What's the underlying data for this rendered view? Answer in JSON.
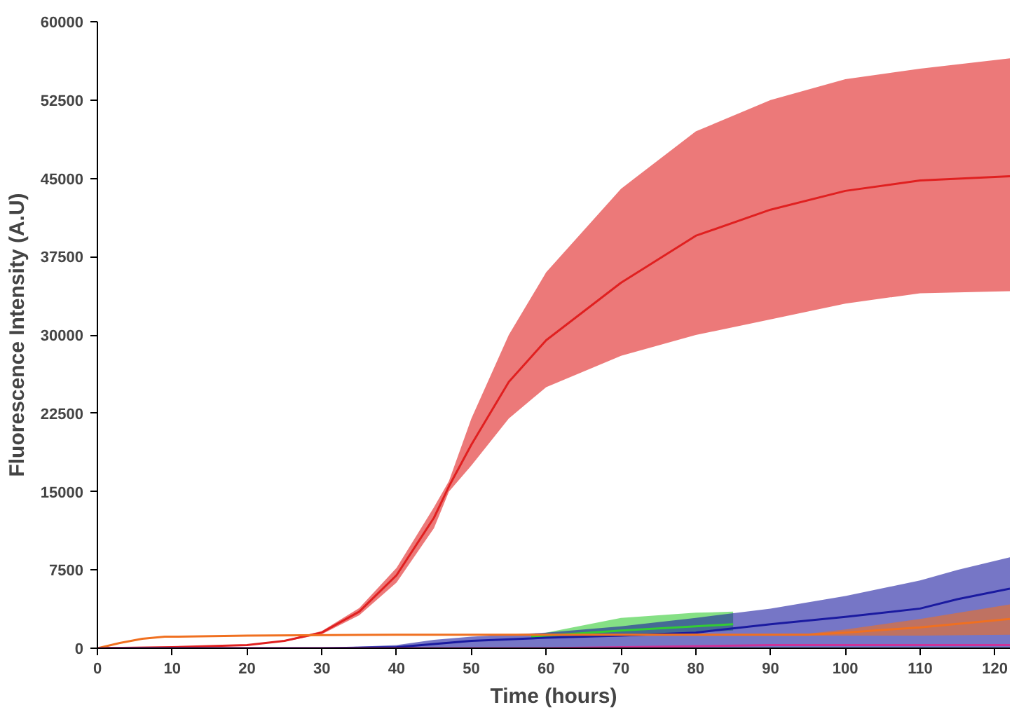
{
  "chart_data": {
    "type": "line",
    "xlabel": "Time (hours)",
    "ylabel": "Fluorescence Intensity (A.U)",
    "xlim": [
      0,
      122
    ],
    "ylim": [
      0,
      60000
    ],
    "xticks": [
      0,
      10,
      20,
      30,
      40,
      50,
      60,
      70,
      80,
      90,
      100,
      110,
      120
    ],
    "yticks": [
      0,
      7500,
      15000,
      22500,
      30000,
      37500,
      45000,
      52500,
      60000
    ],
    "grid": false,
    "marker": "none",
    "line_style": "solid",
    "series": [
      {
        "color": "#e02020",
        "x": [
          0,
          10,
          20,
          25,
          30,
          35,
          40,
          45,
          47,
          50,
          55,
          60,
          70,
          80,
          90,
          100,
          110,
          122
        ],
        "values": [
          0,
          100,
          300,
          700,
          1500,
          3500,
          7000,
          12500,
          15500,
          19500,
          25500,
          29500,
          35000,
          39500,
          42000,
          43800,
          44800,
          45200
        ],
        "lower": [
          0,
          90,
          270,
          630,
          1350,
          3150,
          6300,
          11500,
          15000,
          17500,
          22000,
          25000,
          28000,
          30000,
          31500,
          33000,
          34000,
          34200
        ],
        "upper": [
          0,
          110,
          330,
          770,
          1650,
          3850,
          7700,
          13500,
          16000,
          22000,
          30000,
          36000,
          44000,
          49500,
          52500,
          54500,
          55500,
          56500
        ]
      },
      {
        "color": "#33cc33",
        "x": [
          58,
          60,
          70,
          80,
          85
        ],
        "values": [
          1100,
          1200,
          1700,
          2100,
          2300
        ],
        "lower": [
          1000,
          1000,
          1200,
          1500,
          1700
        ],
        "upper": [
          1200,
          1500,
          2900,
          3400,
          3500
        ]
      },
      {
        "color": "#1a1aa0",
        "x": [
          0,
          30,
          40,
          45,
          50,
          60,
          70,
          80,
          90,
          100,
          110,
          115,
          122
        ],
        "values": [
          0,
          0,
          100,
          400,
          700,
          1000,
          1200,
          1500,
          2300,
          3000,
          3800,
          4700,
          5700
        ],
        "lower": [
          0,
          0,
          0,
          0,
          0,
          0,
          0,
          0,
          0,
          0,
          0,
          0,
          0
        ],
        "upper": [
          0,
          0,
          300,
          800,
          1100,
          1500,
          2100,
          2900,
          3800,
          5000,
          6500,
          7500,
          8700
        ]
      },
      {
        "color": "#f07020",
        "x": [
          0,
          3,
          6,
          9,
          10,
          20,
          40,
          60,
          80,
          95,
          100,
          110,
          122
        ],
        "values": [
          0,
          500,
          900,
          1100,
          1100,
          1200,
          1300,
          1300,
          1300,
          1300,
          1500,
          2000,
          2800
        ],
        "lower": [
          0,
          500,
          900,
          1100,
          1100,
          1200,
          1300,
          1300,
          1300,
          1200,
          1200,
          1200,
          1300
        ],
        "upper": [
          0,
          500,
          900,
          1100,
          1100,
          1200,
          1300,
          1300,
          1300,
          1400,
          1800,
          2800,
          4200
        ]
      },
      {
        "color": "#cc3399",
        "x": [
          0,
          60,
          90,
          122
        ],
        "values": [
          0,
          0,
          300,
          300
        ]
      }
    ]
  }
}
